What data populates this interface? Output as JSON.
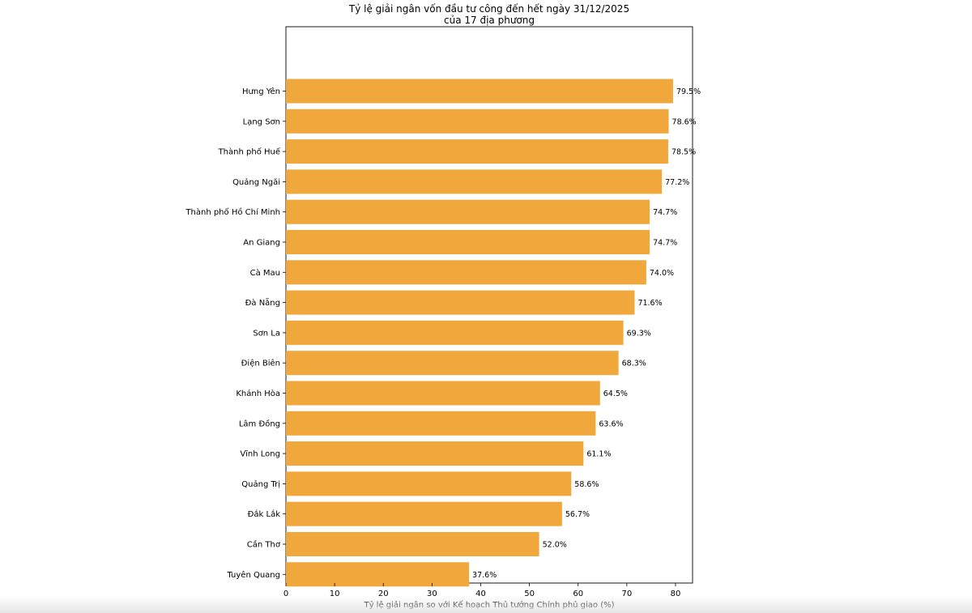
{
  "chart_data": {
    "type": "bar",
    "orientation": "horizontal",
    "title": "Tỷ lệ giải ngân vốn đầu tư công đến hết ngày 31/12/2025",
    "subtitle": "của 17 địa phương",
    "xlabel": "Tỷ lệ giải ngân so với Kế hoạch Thủ tướng Chính phủ giao (%)",
    "ylabel": "",
    "xlim": [
      0,
      83.5
    ],
    "xticks": [
      0,
      10,
      20,
      30,
      40,
      50,
      60,
      70,
      80
    ],
    "bar_color": "#f0a83c",
    "grid": false,
    "categories": [
      "Hưng Yên",
      "Lạng Sơn",
      "Thành phố Huế",
      "Quảng Ngãi",
      "Thành phố Hồ Chí Minh",
      "An Giang",
      "Cà Mau",
      "Đà Nẵng",
      "Sơn La",
      "Điện Biên",
      "Khánh Hòa",
      "Lâm Đồng",
      "Vĩnh Long",
      "Quảng Trị",
      "Đắk Lắk",
      "Cần Thơ",
      "Tuyên Quang"
    ],
    "values": [
      79.5,
      78.6,
      78.5,
      77.2,
      74.7,
      74.7,
      74.0,
      71.6,
      69.3,
      68.3,
      64.5,
      63.6,
      61.1,
      58.6,
      56.7,
      52.0,
      37.6
    ],
    "value_labels": [
      "79.5%",
      "78.6%",
      "78.5%",
      "77.2%",
      "74.7%",
      "74.7%",
      "74.0%",
      "71.6%",
      "69.3%",
      "68.3%",
      "64.5%",
      "63.6%",
      "61.1%",
      "58.6%",
      "56.7%",
      "52.0%",
      "37.6%"
    ]
  }
}
